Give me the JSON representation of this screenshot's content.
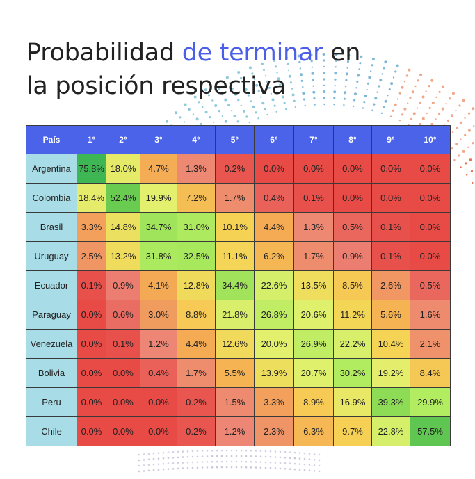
{
  "title": {
    "part1": "Probabilidad ",
    "accent": "de terminar",
    "part2": " en",
    "line2": "la posición respectiva"
  },
  "chart_data": {
    "type": "table",
    "corner_header": "País",
    "columns": [
      "1°",
      "2°",
      "3°",
      "4°",
      "5°",
      "6°",
      "7°",
      "8°",
      "9°",
      "10°"
    ],
    "rows": [
      {
        "team": "Argentina",
        "values": [
          "75.8%",
          "18.0%",
          "4.7%",
          "1.3%",
          "0.2%",
          "0.0%",
          "0.0%",
          "0.0%",
          "0.0%",
          "0.0%"
        ]
      },
      {
        "team": "Colombia",
        "values": [
          "18.4%",
          "52.4%",
          "19.9%",
          "7.2%",
          "1.7%",
          "0.4%",
          "0.1%",
          "0.0%",
          "0.0%",
          "0.0%"
        ]
      },
      {
        "team": "Brasil",
        "values": [
          "3.3%",
          "14.8%",
          "34.7%",
          "31.0%",
          "10.1%",
          "4.4%",
          "1.3%",
          "0.5%",
          "0.1%",
          "0.0%"
        ]
      },
      {
        "team": "Uruguay",
        "values": [
          "2.5%",
          "13.2%",
          "31.8%",
          "32.5%",
          "11.1%",
          "6.2%",
          "1.7%",
          "0.9%",
          "0.1%",
          "0.0%"
        ]
      },
      {
        "team": "Ecuador",
        "values": [
          "0.1%",
          "0.9%",
          "4.1%",
          "12.8%",
          "34.4%",
          "22.6%",
          "13.5%",
          "8.5%",
          "2.6%",
          "0.5%"
        ]
      },
      {
        "team": "Paraguay",
        "values": [
          "0.0%",
          "0.6%",
          "3.0%",
          "8.8%",
          "21.8%",
          "26.8%",
          "20.6%",
          "11.2%",
          "5.6%",
          "1.6%"
        ]
      },
      {
        "team": "Venezuela",
        "values": [
          "0.0%",
          "0.1%",
          "1.2%",
          "4.4%",
          "12.6%",
          "20.0%",
          "26.9%",
          "22.2%",
          "10.4%",
          "2.1%"
        ]
      },
      {
        "team": "Bolivia",
        "values": [
          "0.0%",
          "0.0%",
          "0.4%",
          "1.7%",
          "5.5%",
          "13.9%",
          "20.7%",
          "30.2%",
          "19.2%",
          "8.4%"
        ]
      },
      {
        "team": "Peru",
        "values": [
          "0.0%",
          "0.0%",
          "0.0%",
          "0.2%",
          "1.5%",
          "3.3%",
          "8.9%",
          "16.9%",
          "39.3%",
          "29.9%"
        ]
      },
      {
        "team": "Chile",
        "values": [
          "0.0%",
          "0.0%",
          "0.0%",
          "0.2%",
          "1.2%",
          "2.3%",
          "6.3%",
          "9.7%",
          "22.8%",
          "57.5%"
        ]
      }
    ]
  },
  "colors": {
    "header_bg": "#4a63e8",
    "team_bg": "#a8dce6",
    "accent_text": "#4a5ee8"
  }
}
